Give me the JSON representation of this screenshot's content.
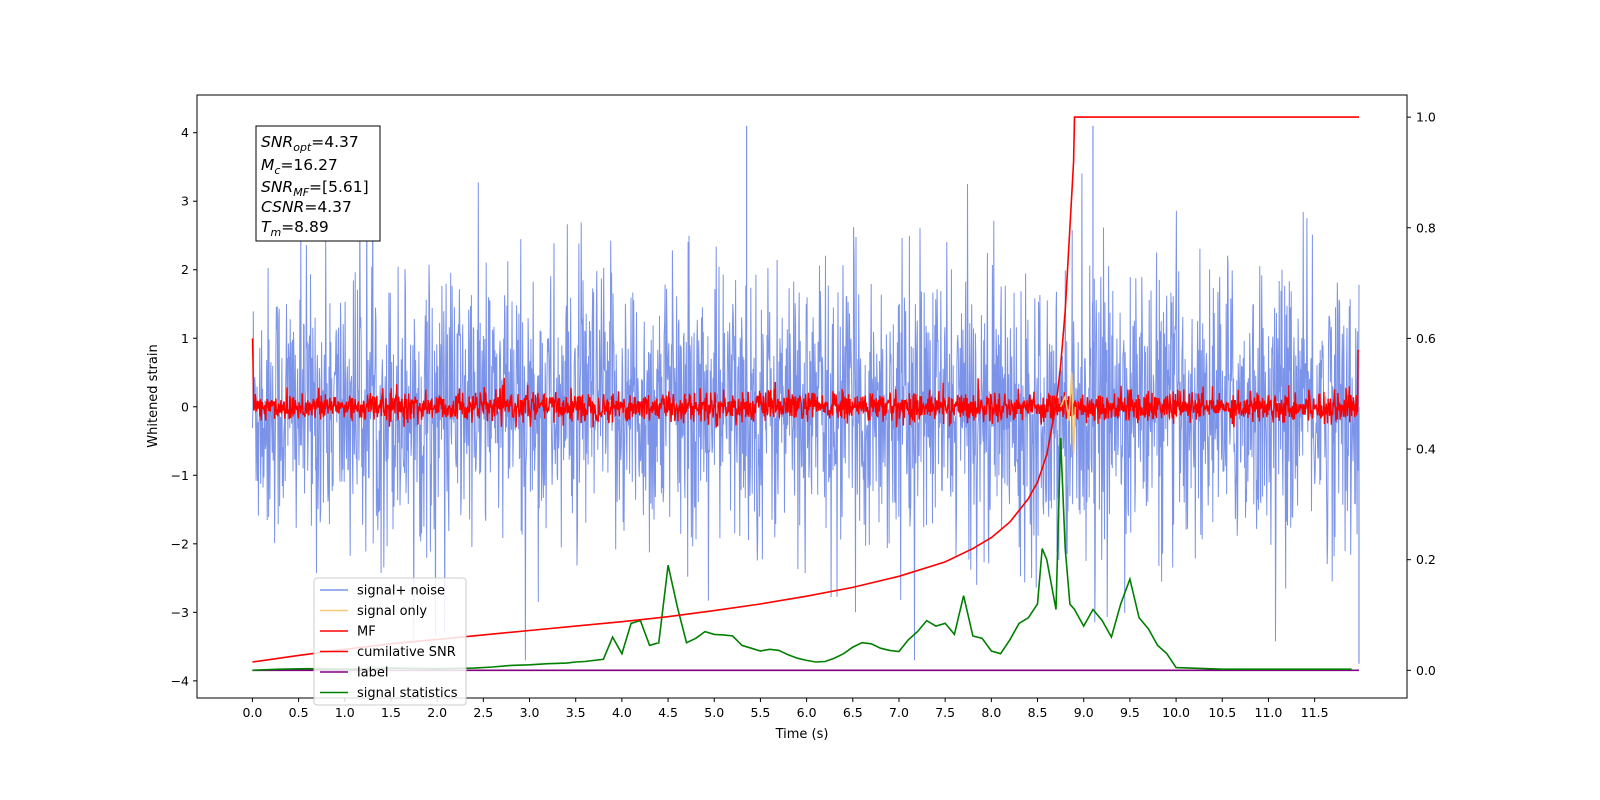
{
  "chart_data": {
    "type": "line",
    "title": "",
    "xlabel": "Time (s)",
    "ylabel": "Whitened strain",
    "xlim": [
      -0.6,
      12.5
    ],
    "ylim": [
      -4.25,
      4.55
    ],
    "ylim_right": [
      -0.05,
      1.04
    ],
    "x_ticks": [
      0.0,
      0.5,
      1.0,
      1.5,
      2.0,
      2.5,
      3.0,
      3.5,
      4.0,
      4.5,
      5.0,
      5.5,
      6.0,
      6.5,
      7.0,
      7.5,
      8.0,
      8.5,
      9.0,
      9.5,
      10.0,
      10.5,
      11.0,
      11.5
    ],
    "x_tick_labels": [
      "0.0",
      "0.5",
      "1.0",
      "1.5",
      "2.0",
      "2.5",
      "3.0",
      "3.5",
      "4.0",
      "4.5",
      "5.0",
      "5.5",
      "6.0",
      "6.5",
      "7.0",
      "7.5",
      "8.0",
      "8.5",
      "9.0",
      "9.5",
      "10.0",
      "10.5",
      "11.0",
      "11.5"
    ],
    "y_ticks": [
      -4,
      -3,
      -2,
      -1,
      0,
      1,
      2,
      3,
      4
    ],
    "y_tick_labels": [
      "−4",
      "−3",
      "−2",
      "−1",
      "0",
      "1",
      "2",
      "3",
      "4"
    ],
    "y_right_ticks": [
      0.0,
      0.2,
      0.4,
      0.6,
      0.8,
      1.0
    ],
    "y_right_tick_labels": [
      "0.0",
      "0.2",
      "0.4",
      "0.6",
      "0.8",
      "1.0"
    ],
    "grid": false,
    "legend_position": "lower-left",
    "annotation_lines": [
      {
        "var": "SNR",
        "sub": "opt",
        "value": "=4.37"
      },
      {
        "var": "M",
        "sub": "c",
        "value": "=16.27"
      },
      {
        "var": "SNR",
        "sub": "MF",
        "value": "=[5.61]"
      },
      {
        "var": "CSNR",
        "sub": "",
        "value": "=4.37"
      },
      {
        "var": "T",
        "sub": "m",
        "value": "=8.89"
      }
    ],
    "series": [
      {
        "name": "signal+ noise",
        "color": "#7b93e8",
        "axis": "left",
        "x_range": [
          0.0,
          11.98
        ],
        "approx_envelope": [
          -2.3,
          2.3
        ],
        "peak_values": [
          4.1,
          -3.75
        ],
        "note": "noise"
      },
      {
        "name": "signal only",
        "color": "#f5c97a",
        "axis": "left",
        "x": [
          8.75,
          8.8,
          8.84,
          8.87,
          8.89,
          8.91
        ],
        "y": [
          0.0,
          0.15,
          -0.2,
          0.5,
          -0.7,
          0.0
        ]
      },
      {
        "name": "MF",
        "color": "#ff0000",
        "axis": "left",
        "x_range": [
          0.0,
          11.98
        ],
        "approx_envelope": [
          -0.3,
          0.35
        ],
        "peak_values": [
          1.0,
          0.82
        ]
      },
      {
        "name": "cumilative SNR",
        "color": "#ff0000",
        "axis": "right",
        "x": [
          0.0,
          0.5,
          1.0,
          1.5,
          2.0,
          2.5,
          3.0,
          3.5,
          4.0,
          4.5,
          5.0,
          5.5,
          6.0,
          6.5,
          7.0,
          7.5,
          7.8,
          8.0,
          8.2,
          8.4,
          8.5,
          8.6,
          8.7,
          8.75,
          8.8,
          8.85,
          8.89,
          8.9,
          11.98
        ],
        "y": [
          0.015,
          0.027,
          0.038,
          0.048,
          0.056,
          0.064,
          0.072,
          0.08,
          0.088,
          0.097,
          0.108,
          0.12,
          0.134,
          0.15,
          0.17,
          0.196,
          0.22,
          0.24,
          0.268,
          0.31,
          0.34,
          0.39,
          0.48,
          0.55,
          0.65,
          0.8,
          0.92,
          1.0,
          1.0
        ]
      },
      {
        "name": "label",
        "color": "#800080",
        "axis": "right",
        "x": [
          0.0,
          11.98
        ],
        "y": [
          0.0,
          0.0
        ]
      },
      {
        "name": "signal statistics",
        "color": "#008000",
        "axis": "right",
        "x": [
          0.0,
          0.3,
          0.6,
          1.0,
          1.5,
          2.0,
          2.4,
          2.6,
          2.8,
          3.0,
          3.2,
          3.4,
          3.5,
          3.6,
          3.8,
          3.9,
          4.0,
          4.1,
          4.2,
          4.3,
          4.4,
          4.5,
          4.6,
          4.7,
          4.8,
          4.9,
          5.0,
          5.1,
          5.2,
          5.3,
          5.4,
          5.5,
          5.6,
          5.7,
          5.8,
          5.9,
          6.0,
          6.1,
          6.2,
          6.3,
          6.4,
          6.5,
          6.6,
          6.7,
          6.8,
          6.9,
          7.0,
          7.1,
          7.2,
          7.3,
          7.4,
          7.5,
          7.6,
          7.7,
          7.8,
          7.9,
          8.0,
          8.1,
          8.2,
          8.3,
          8.4,
          8.5,
          8.55,
          8.6,
          8.7,
          8.75,
          8.8,
          8.85,
          8.9,
          9.0,
          9.1,
          9.2,
          9.3,
          9.4,
          9.5,
          9.6,
          9.7,
          9.8,
          9.9,
          10.0,
          10.5,
          11.0,
          11.5,
          11.9
        ],
        "y": [
          0.0,
          0.002,
          0.003,
          0.002,
          0.004,
          0.003,
          0.004,
          0.006,
          0.009,
          0.01,
          0.012,
          0.013,
          0.015,
          0.016,
          0.02,
          0.06,
          0.03,
          0.085,
          0.09,
          0.045,
          0.05,
          0.19,
          0.115,
          0.05,
          0.058,
          0.07,
          0.065,
          0.064,
          0.062,
          0.045,
          0.04,
          0.035,
          0.038,
          0.036,
          0.028,
          0.022,
          0.018,
          0.015,
          0.016,
          0.022,
          0.03,
          0.042,
          0.05,
          0.048,
          0.04,
          0.036,
          0.034,
          0.055,
          0.07,
          0.09,
          0.08,
          0.085,
          0.065,
          0.135,
          0.062,
          0.058,
          0.035,
          0.03,
          0.055,
          0.085,
          0.095,
          0.12,
          0.22,
          0.2,
          0.11,
          0.42,
          0.22,
          0.12,
          0.11,
          0.08,
          0.11,
          0.09,
          0.06,
          0.12,
          0.165,
          0.095,
          0.075,
          0.045,
          0.03,
          0.005,
          0.002,
          0.002,
          0.002,
          0.002
        ]
      }
    ]
  }
}
